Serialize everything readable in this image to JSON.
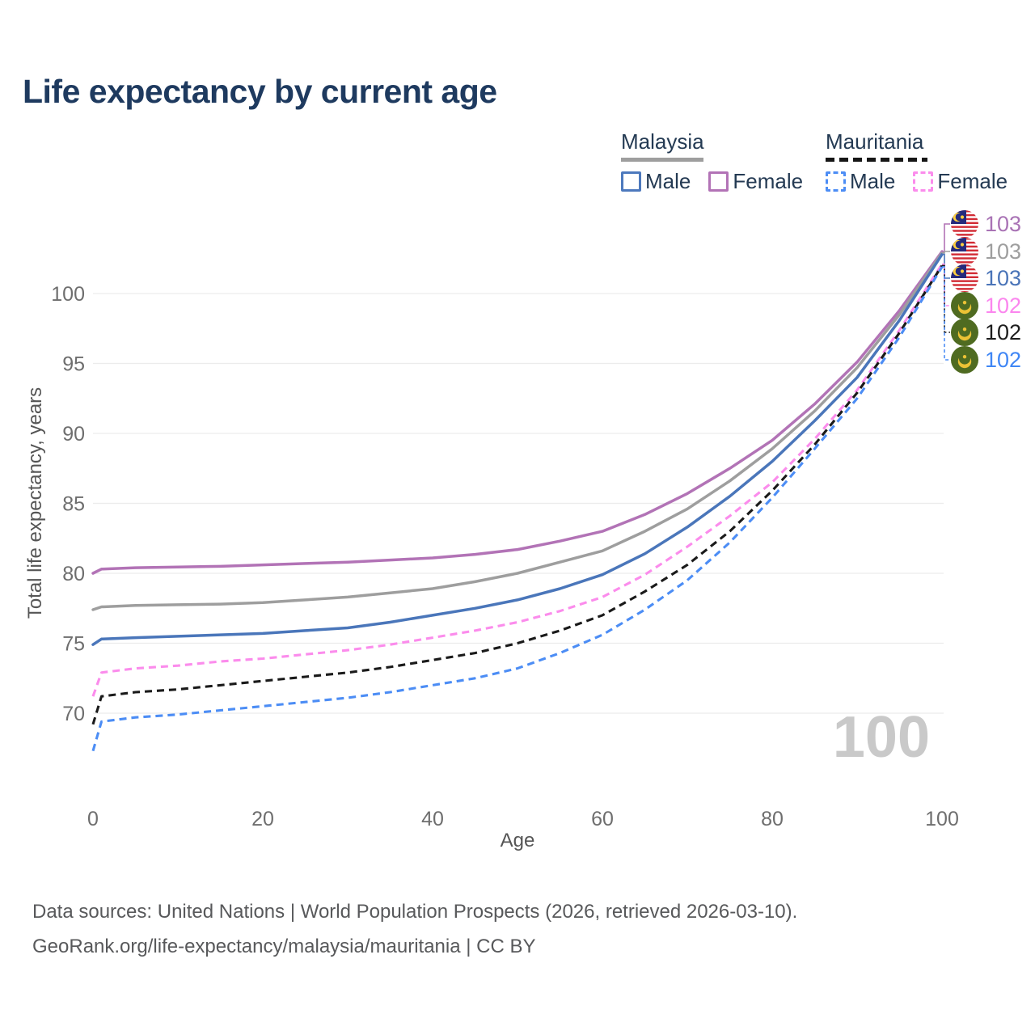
{
  "page": {
    "title": "Life expectancy by current age"
  },
  "legend": {
    "malaysia": {
      "label": "Malaysia",
      "male_label": "Male",
      "female_label": "Female"
    },
    "mauritania": {
      "label": "Mauritania",
      "male_label": "Male",
      "female_label": "Female"
    }
  },
  "axes": {
    "y_title": "Total life expectancy, years",
    "x_title": "Age"
  },
  "watermark_age": "100",
  "end_labels": [
    {
      "value": "103",
      "country": "Malaysia",
      "series": "Female",
      "color": "#a973b5"
    },
    {
      "value": "103",
      "country": "Malaysia",
      "series": "Both sexes",
      "color": "#9e9e9e"
    },
    {
      "value": "103",
      "country": "Malaysia",
      "series": "Male",
      "color": "#4a74b8"
    },
    {
      "value": "102",
      "country": "Mauritania",
      "series": "Female",
      "color": "#fb86ee"
    },
    {
      "value": "102",
      "country": "Mauritania",
      "series": "Both sexes",
      "color": "#1d1d1d"
    },
    {
      "value": "102",
      "country": "Mauritania",
      "series": "Male",
      "color": "#3f86f5"
    }
  ],
  "footer": {
    "line1": "Data sources: United Nations | World Population Prospects (2026, retrieved 2026-03-10).",
    "line2": "GeoRank.org/life-expectancy/malaysia/mauritania | CC BY"
  },
  "chart_data": {
    "type": "line",
    "title": "Life expectancy by current age",
    "xlabel": "Age",
    "ylabel": "Total life expectancy, years",
    "xlim": [
      0,
      100
    ],
    "ylim": [
      67,
      104
    ],
    "x_ticks": [
      0,
      20,
      40,
      60,
      80,
      100
    ],
    "y_ticks": [
      70,
      75,
      80,
      85,
      90,
      95,
      100
    ],
    "grid": "horizontal",
    "legend_position": "top-right",
    "x": [
      0,
      1,
      5,
      10,
      15,
      20,
      25,
      30,
      35,
      40,
      45,
      50,
      55,
      60,
      65,
      70,
      75,
      80,
      85,
      90,
      95,
      100
    ],
    "series": [
      {
        "name": "Malaysia Female",
        "color": "#b273b6",
        "dash": "solid",
        "end_label": "103",
        "values": [
          80.0,
          80.3,
          80.4,
          80.45,
          80.5,
          80.6,
          80.7,
          80.8,
          80.95,
          81.1,
          81.35,
          81.7,
          82.3,
          83.0,
          84.2,
          85.7,
          87.5,
          89.5,
          92.1,
          95.1,
          98.8,
          103.0
        ]
      },
      {
        "name": "Malaysia Both sexes",
        "color": "#9e9e9e",
        "dash": "solid",
        "end_label": "103",
        "values": [
          77.4,
          77.6,
          77.7,
          77.75,
          77.8,
          77.9,
          78.1,
          78.3,
          78.6,
          78.9,
          79.4,
          80.0,
          80.8,
          81.6,
          83.0,
          84.6,
          86.6,
          88.9,
          91.6,
          94.7,
          98.5,
          102.9
        ]
      },
      {
        "name": "Malaysia Male",
        "color": "#4a76ba",
        "dash": "solid",
        "end_label": "103",
        "values": [
          74.9,
          75.3,
          75.4,
          75.5,
          75.6,
          75.7,
          75.9,
          76.1,
          76.5,
          77.0,
          77.5,
          78.1,
          78.9,
          79.9,
          81.4,
          83.3,
          85.5,
          88.0,
          90.9,
          94.0,
          98.1,
          102.8
        ]
      },
      {
        "name": "Mauritania Female",
        "color": "#fb8cec",
        "dash": "dashed",
        "end_label": "102",
        "values": [
          71.2,
          72.9,
          73.2,
          73.4,
          73.7,
          73.9,
          74.2,
          74.5,
          74.9,
          75.4,
          75.9,
          76.5,
          77.3,
          78.3,
          79.9,
          81.9,
          84.1,
          86.5,
          89.6,
          93.1,
          97.4,
          102.1
        ]
      },
      {
        "name": "Mauritania Both sexes",
        "color": "#1a1a1a",
        "dash": "dashed",
        "end_label": "102",
        "values": [
          69.2,
          71.2,
          71.5,
          71.7,
          72.0,
          72.3,
          72.6,
          72.9,
          73.3,
          73.8,
          74.3,
          75.0,
          75.9,
          77.0,
          78.7,
          80.6,
          83.0,
          85.9,
          89.2,
          92.9,
          97.2,
          102.0
        ]
      },
      {
        "name": "Mauritania Male",
        "color": "#4c8df5",
        "dash": "dashed",
        "end_label": "102",
        "values": [
          67.3,
          69.4,
          69.7,
          69.9,
          70.2,
          70.5,
          70.8,
          71.1,
          71.5,
          72.0,
          72.5,
          73.2,
          74.3,
          75.6,
          77.4,
          79.5,
          82.2,
          85.4,
          88.9,
          92.5,
          96.9,
          101.9
        ]
      }
    ]
  }
}
